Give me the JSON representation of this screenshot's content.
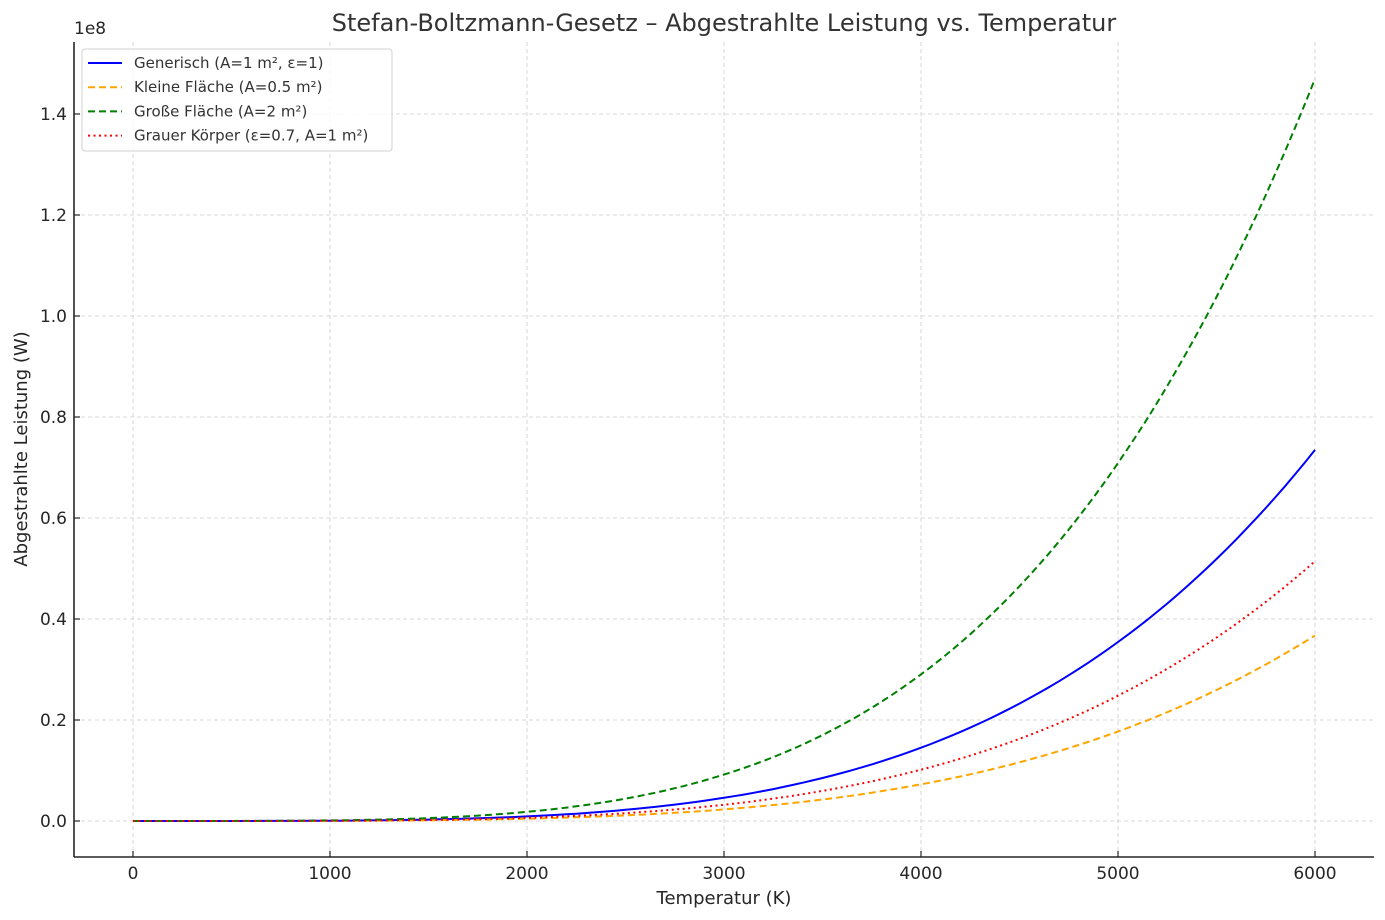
{
  "chart_data": {
    "type": "line",
    "title": "Stefan-Boltzmann-Gesetz – Abgestrahlte Leistung vs. Temperatur",
    "xlabel": "Temperatur (K)",
    "ylabel": "Abgestrahlte Leistung (W)",
    "y_offset_label": "1e8",
    "xlim": [
      -300,
      6300
    ],
    "ylim": [
      -7200000.0,
      154000000.0
    ],
    "x_ticks": [
      0,
      1000,
      2000,
      3000,
      4000,
      5000,
      6000
    ],
    "x_tick_labels": [
      "0",
      "1000",
      "2000",
      "3000",
      "4000",
      "5000",
      "6000"
    ],
    "y_ticks": [
      0,
      0.2,
      0.4,
      0.6,
      0.8,
      1.0,
      1.2,
      1.4
    ],
    "y_tick_labels": [
      "0.0",
      "0.2",
      "0.4",
      "0.6",
      "0.8",
      "1.0",
      "1.2",
      "1.4"
    ],
    "grid": true,
    "legend_position": "upper left",
    "x": [
      0,
      500,
      1000,
      1500,
      2000,
      2500,
      3000,
      3500,
      4000,
      4500,
      5000,
      5500,
      6000
    ],
    "series": [
      {
        "name": "Generisch (A=1 m², ε=1)",
        "color": "#0000ff",
        "style": "solid",
        "emissivity": 1.0,
        "area": 1.0,
        "values": [
          0,
          3544,
          56700,
          287044,
          907200,
          2214844,
          4592700,
          8508544,
          14515200,
          23250544,
          35437500,
          51884044,
          73483200
        ]
      },
      {
        "name": "Kleine Fläche (A=0.5 m²)",
        "color": "#ffa500",
        "style": "dashed",
        "emissivity": 1.0,
        "area": 0.5,
        "values": [
          0,
          1772,
          28350,
          143522,
          453600,
          1107422,
          2296350,
          4254272,
          7257600,
          11625272,
          17718750,
          25942022,
          36741600
        ]
      },
      {
        "name": "Große Fläche (A=2 m²)",
        "color": "#008000",
        "style": "dashed",
        "emissivity": 1.0,
        "area": 2.0,
        "values": [
          0,
          7088,
          113400,
          574088,
          1814400,
          4429688,
          9185400,
          17017088,
          29030400,
          46501088,
          70875000,
          103768088,
          146966400
        ]
      },
      {
        "name": "Grauer Körper (ε=0.7, A=1 m²)",
        "color": "#ff0000",
        "style": "dotted",
        "emissivity": 0.7,
        "area": 1.0,
        "values": [
          0,
          2481,
          39690,
          200931,
          635040,
          1550391,
          3214890,
          5955981,
          10160640,
          16275381,
          24806250,
          36318831,
          51438240
        ]
      }
    ]
  }
}
